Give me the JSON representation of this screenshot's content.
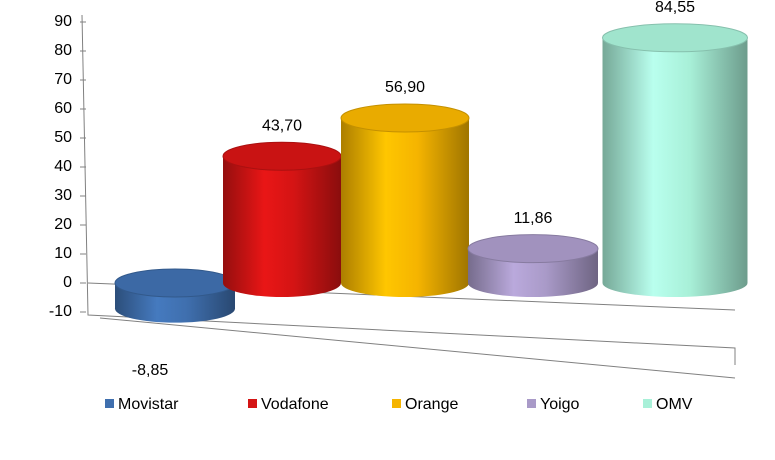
{
  "chart_data": {
    "type": "cylinder",
    "series": [
      {
        "name": "Movistar",
        "color": "#3f6fae",
        "values": [
          -8.85
        ],
        "value_labels": [
          "-8,85"
        ]
      },
      {
        "name": "Vodafone",
        "color": "#d41414",
        "values": [
          43.7
        ],
        "value_labels": [
          "43,70"
        ]
      },
      {
        "name": "Orange",
        "color": "#f5b400",
        "values": [
          56.9
        ],
        "value_labels": [
          "56,90"
        ]
      },
      {
        "name": "Yoigo",
        "color": "#a99ac8",
        "values": [
          11.86
        ],
        "value_labels": [
          "11,86"
        ]
      },
      {
        "name": "OMV",
        "color": "#a8f0d8",
        "values": [
          84.55
        ],
        "value_labels": [
          "84,55"
        ]
      }
    ],
    "ylim": [
      -10,
      90
    ],
    "yticks": [
      -10,
      0,
      10,
      20,
      30,
      40,
      50,
      60,
      70,
      80,
      90
    ],
    "legend": "bottom"
  }
}
